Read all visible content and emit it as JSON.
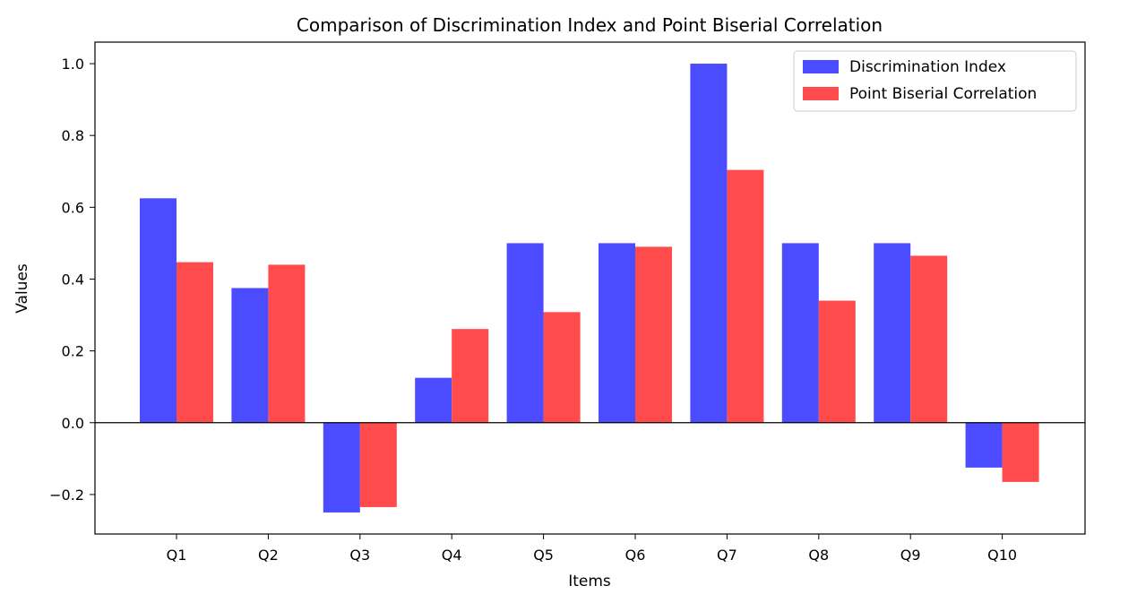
{
  "chart_data": {
    "type": "bar",
    "title": "Comparison of Discrimination Index and Point Biserial Correlation",
    "xlabel": "Items",
    "ylabel": "Values",
    "categories": [
      "Q1",
      "Q2",
      "Q3",
      "Q4",
      "Q5",
      "Q6",
      "Q7",
      "Q8",
      "Q9",
      "Q10"
    ],
    "series": [
      {
        "name": "Discrimination Index",
        "color": "#4b4bff",
        "values": [
          0.625,
          0.375,
          -0.25,
          0.125,
          0.5,
          0.5,
          1.0,
          0.5,
          0.5,
          -0.125
        ]
      },
      {
        "name": "Point Biserial Correlation",
        "color": "#ff4b4b",
        "values": [
          0.447,
          0.44,
          -0.235,
          0.261,
          0.308,
          0.49,
          0.704,
          0.34,
          0.465,
          -0.165
        ]
      }
    ],
    "ylim": [
      -0.31,
      1.06
    ],
    "yticks": [
      -0.2,
      0.0,
      0.2,
      0.4,
      0.6,
      0.8,
      1.0
    ],
    "ytick_labels": [
      "−0.2",
      "0.0",
      "0.2",
      "0.4",
      "0.6",
      "0.8",
      "1.0"
    ],
    "zero_line": true,
    "grid": false,
    "legend_position": "top-right"
  }
}
